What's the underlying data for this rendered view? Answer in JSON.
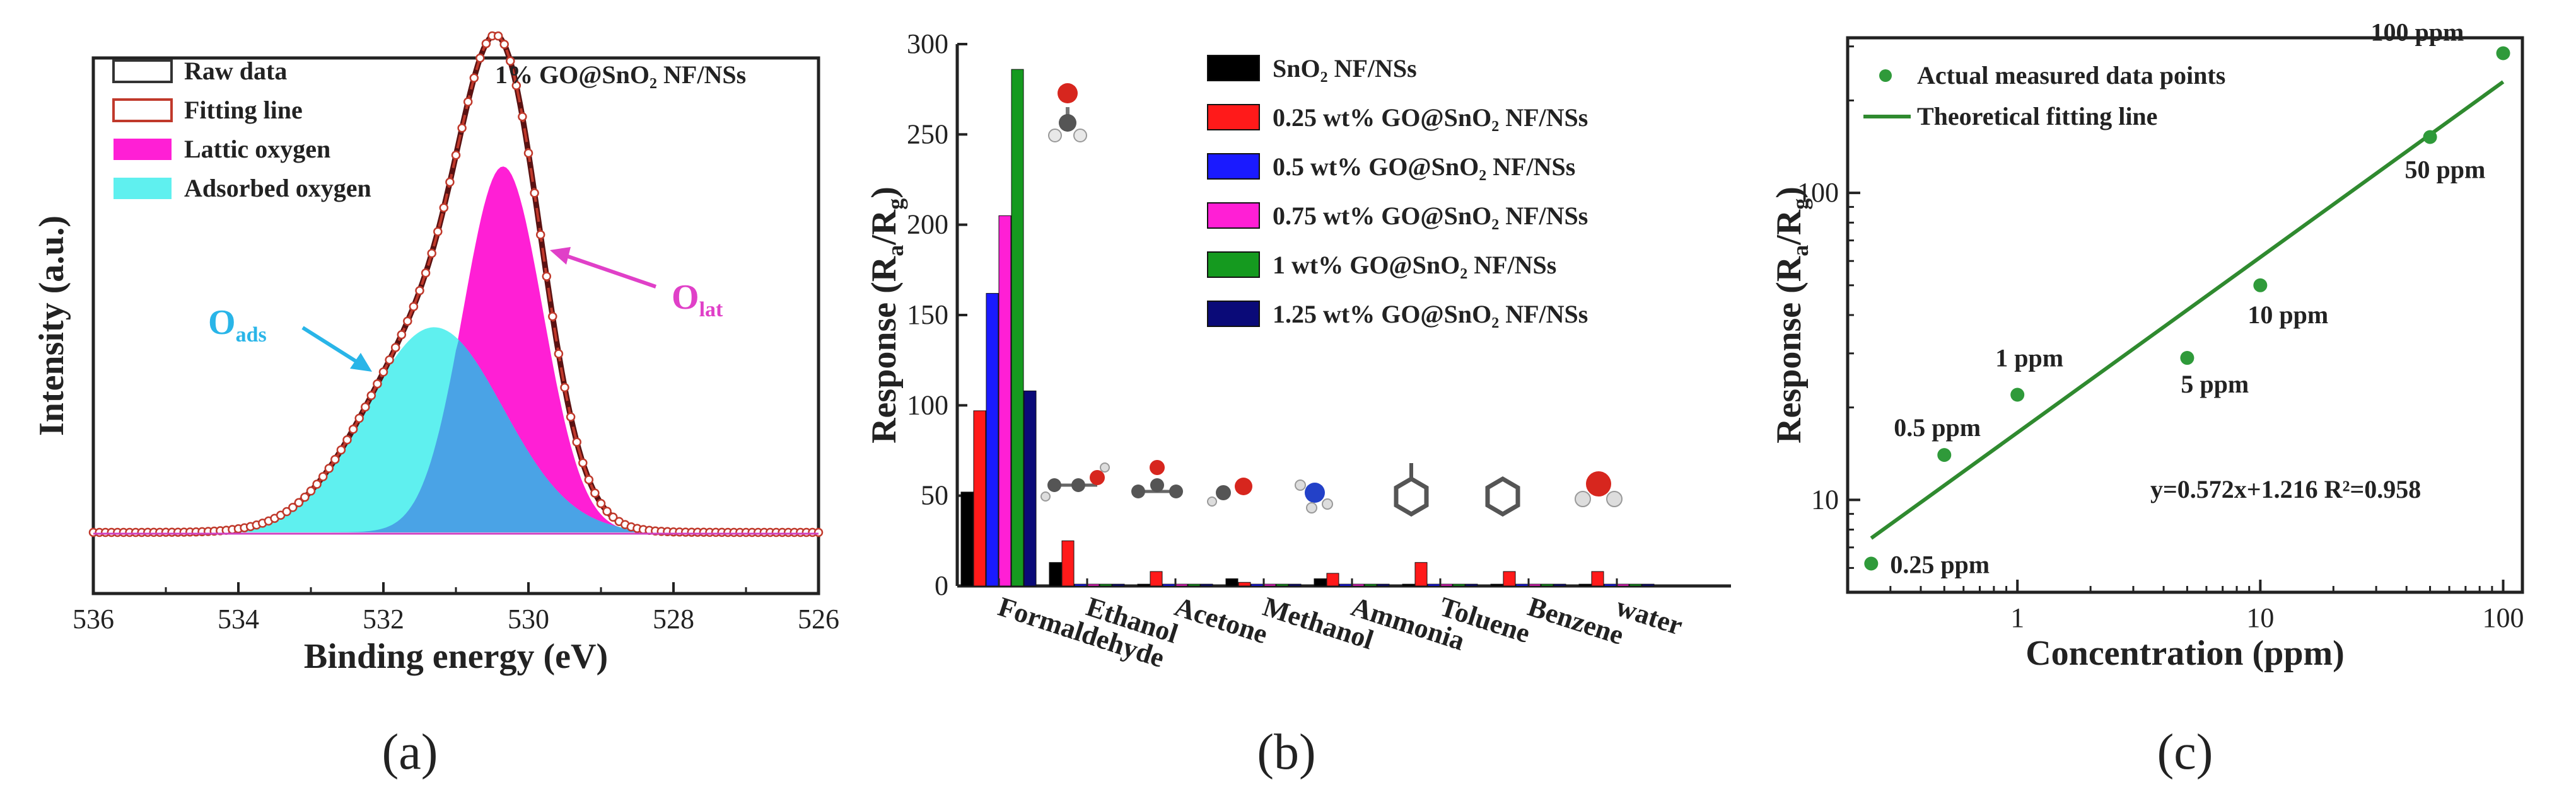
{
  "chart_data": [
    {
      "type": "area",
      "panel": "(a)",
      "title": "1% GO@SnO₂ NF/NSs",
      "xlabel": "Binding energy (eV)",
      "ylabel": "Intensity (a.u.)",
      "xlim": [
        536,
        526
      ],
      "x_ticks": [
        "536",
        "534",
        "532",
        "530",
        "528",
        "526"
      ],
      "legend": [
        {
          "label": "Raw data",
          "color": "#333333",
          "kind": "box"
        },
        {
          "label": "Fitting line",
          "color": "#c0392b",
          "kind": "box"
        },
        {
          "label": "Lattic oxygen",
          "color": "#ff1fd5",
          "kind": "fill"
        },
        {
          "label": "Adsorbed oxygen",
          "color": "#5ff0ef",
          "kind": "fill"
        }
      ],
      "peaks": [
        {
          "name": "Lattic oxygen",
          "center": 530.35,
          "height": 0.66,
          "sigma": 0.55,
          "color": "#ff1fd5"
        },
        {
          "name": "Adsorbed oxygen",
          "center": 531.3,
          "height": 0.37,
          "sigma": 0.95,
          "color": "#5ff0ef"
        }
      ],
      "overlap_color": "#4aa3e6",
      "annotations": [
        {
          "base": "O",
          "sub": "ads",
          "color": "#29b5e8"
        },
        {
          "base": "O",
          "sub": "lat",
          "color": "#e040c8"
        }
      ],
      "legend_position": "top-left"
    },
    {
      "type": "bar",
      "panel": "(b)",
      "ylabel_base": "Response (R",
      "ylabel_sub1": "a",
      "ylabel_mid": "/R",
      "ylabel_sub2": "g",
      "ylabel_end": ")",
      "ylim": [
        0,
        300
      ],
      "y_ticks": [
        "0",
        "50",
        "100",
        "150",
        "200",
        "250",
        "300"
      ],
      "categories": [
        "Formaldehyde",
        "Ethanol",
        "Acetone",
        "Methanol",
        "Ammonia",
        "Toluene",
        "Benzene",
        "water"
      ],
      "series": [
        {
          "name": "SnO₂ NF/NSs",
          "color": "#000000",
          "values": [
            52,
            13,
            1,
            4,
            4,
            1,
            1,
            1
          ]
        },
        {
          "name": "0.25 wt% GO@SnO₂ NF/NSs",
          "color": "#ff1a1a",
          "values": [
            97,
            25,
            8,
            2,
            7,
            13,
            8,
            8
          ]
        },
        {
          "name": "0.5 wt% GO@SnO₂ NF/NSs",
          "color": "#1a1aff",
          "values": [
            162,
            1,
            1,
            1,
            1,
            1,
            1,
            1
          ]
        },
        {
          "name": "0.75 wt% GO@SnO₂ NF/NSs",
          "color": "#ff1fd5",
          "values": [
            205,
            1,
            1,
            1,
            1,
            1,
            1,
            1
          ]
        },
        {
          "name": "1 wt% GO@SnO₂ NF/NSs",
          "color": "#159a1f",
          "values": [
            286,
            1,
            1,
            1,
            1,
            1,
            1,
            1
          ]
        },
        {
          "name": "1.25 wt% GO@SnO₂ NF/NSs",
          "color": "#0a0a78",
          "values": [
            108,
            1,
            1,
            1,
            1,
            1,
            1,
            1
          ]
        }
      ],
      "legend_position": "top-right"
    },
    {
      "type": "scatter",
      "panel": "(c)",
      "xlabel": "Concentration (ppm)",
      "ylabel_base": "Response (R",
      "ylabel_sub1": "a",
      "ylabel_mid": "/R",
      "ylabel_sub2": "g",
      "ylabel_end": ")",
      "x_scale": "log",
      "y_scale": "log",
      "xlim": [
        0.2,
        120
      ],
      "ylim": [
        5,
        320
      ],
      "x_ticks": [
        {
          "v": 1,
          "label": "1"
        },
        {
          "v": 10,
          "label": "10"
        },
        {
          "v": 100,
          "label": "100"
        }
      ],
      "y_ticks": [
        {
          "v": 10,
          "label": "10"
        },
        {
          "v": 100,
          "label": "100"
        }
      ],
      "points": [
        {
          "x": 0.25,
          "y": 6.2,
          "label": "0.25 ppm"
        },
        {
          "x": 0.5,
          "y": 14,
          "label": "0.5 ppm"
        },
        {
          "x": 1,
          "y": 22,
          "label": "1 ppm"
        },
        {
          "x": 5,
          "y": 29,
          "label": "5 ppm"
        },
        {
          "x": 10,
          "y": 50,
          "label": "10 ppm"
        },
        {
          "x": 50,
          "y": 152,
          "label": "50 ppm"
        },
        {
          "x": 100,
          "y": 285,
          "label": "100 ppm"
        }
      ],
      "fit_line": {
        "x": [
          0.25,
          100
        ],
        "y": [
          7.5,
          230
        ]
      },
      "point_color": "#2f9a3a",
      "line_color": "#2f8a2f",
      "legend": [
        {
          "label": "Actual measured data points",
          "kind": "point"
        },
        {
          "label": "Theoretical fitting line",
          "kind": "line"
        }
      ],
      "equation": "y=0.572x+1.216 R²=0.958",
      "legend_position": "top-left"
    }
  ]
}
